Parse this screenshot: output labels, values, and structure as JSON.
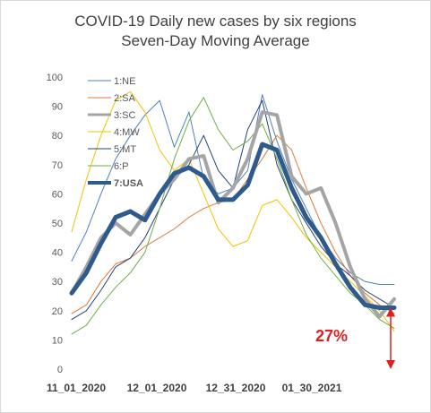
{
  "chart_data": {
    "type": "line",
    "title": "COVID-19 Daily new cases by six regions",
    "subtitle": "Seven-Day Moving Average",
    "xlabel": "",
    "ylabel": "",
    "ylim": [
      0,
      100
    ],
    "yticks": [
      0,
      10,
      20,
      30,
      40,
      50,
      60,
      70,
      80,
      90,
      100
    ],
    "xticks": [
      "11_01_2020",
      "12_01_2020",
      "12_31_2020",
      "01_30_2021"
    ],
    "grid": false,
    "legend_position": "top-left",
    "annotation": {
      "text": "27%",
      "color": "#e02020"
    },
    "x": [
      0,
      5,
      10,
      15,
      20,
      25,
      30,
      35,
      40,
      45,
      50,
      55,
      60,
      65,
      70,
      75,
      80,
      85,
      90,
      95,
      100,
      105,
      110
    ],
    "series": [
      {
        "name": "1:NE",
        "color": "#4f81bd",
        "width": 1,
        "values": [
          37,
          47,
          60,
          72,
          80,
          87,
          92,
          76,
          88,
          65,
          60,
          62,
          68,
          94,
          78,
          65,
          55,
          45,
          38,
          33,
          30,
          29,
          29
        ]
      },
      {
        "name": "2:SA",
        "color": "#e07b39",
        "width": 1,
        "values": [
          19,
          22,
          30,
          36,
          38,
          42,
          45,
          48,
          52,
          55,
          57,
          58,
          65,
          72,
          80,
          75,
          62,
          50,
          40,
          32,
          26,
          22,
          19
        ]
      },
      {
        "name": "3:SC",
        "color": "#a5a5a5",
        "width": 4,
        "values": [
          26,
          35,
          45,
          50,
          46,
          53,
          60,
          65,
          72,
          73,
          57,
          62,
          72,
          88,
          87,
          66,
          60,
          62,
          50,
          35,
          24,
          18,
          24
        ]
      },
      {
        "name": "4:MW",
        "color": "#f2c200",
        "width": 1,
        "values": [
          47,
          65,
          80,
          92,
          95,
          88,
          75,
          68,
          72,
          60,
          48,
          42,
          44,
          56,
          58,
          52,
          45,
          40,
          35,
          30,
          25,
          20,
          13
        ]
      },
      {
        "name": "5:MT",
        "color": "#264478",
        "width": 1,
        "values": [
          17,
          20,
          27,
          35,
          38,
          45,
          55,
          65,
          70,
          80,
          68,
          62,
          82,
          92,
          70,
          58,
          50,
          42,
          36,
          32,
          27,
          24,
          21
        ]
      },
      {
        "name": "6:P",
        "color": "#70ad47",
        "width": 1,
        "values": [
          12,
          15,
          22,
          28,
          33,
          40,
          55,
          72,
          85,
          93,
          82,
          75,
          78,
          84,
          72,
          58,
          46,
          38,
          32,
          26,
          22,
          17,
          14
        ]
      },
      {
        "name": "7:USA",
        "color": "#2e5a8e",
        "width": 5,
        "values": [
          26,
          33,
          43,
          52,
          54,
          51,
          60,
          67,
          69,
          66,
          58,
          58,
          63,
          77,
          75,
          62,
          52,
          45,
          36,
          28,
          22,
          21,
          21
        ]
      }
    ]
  }
}
